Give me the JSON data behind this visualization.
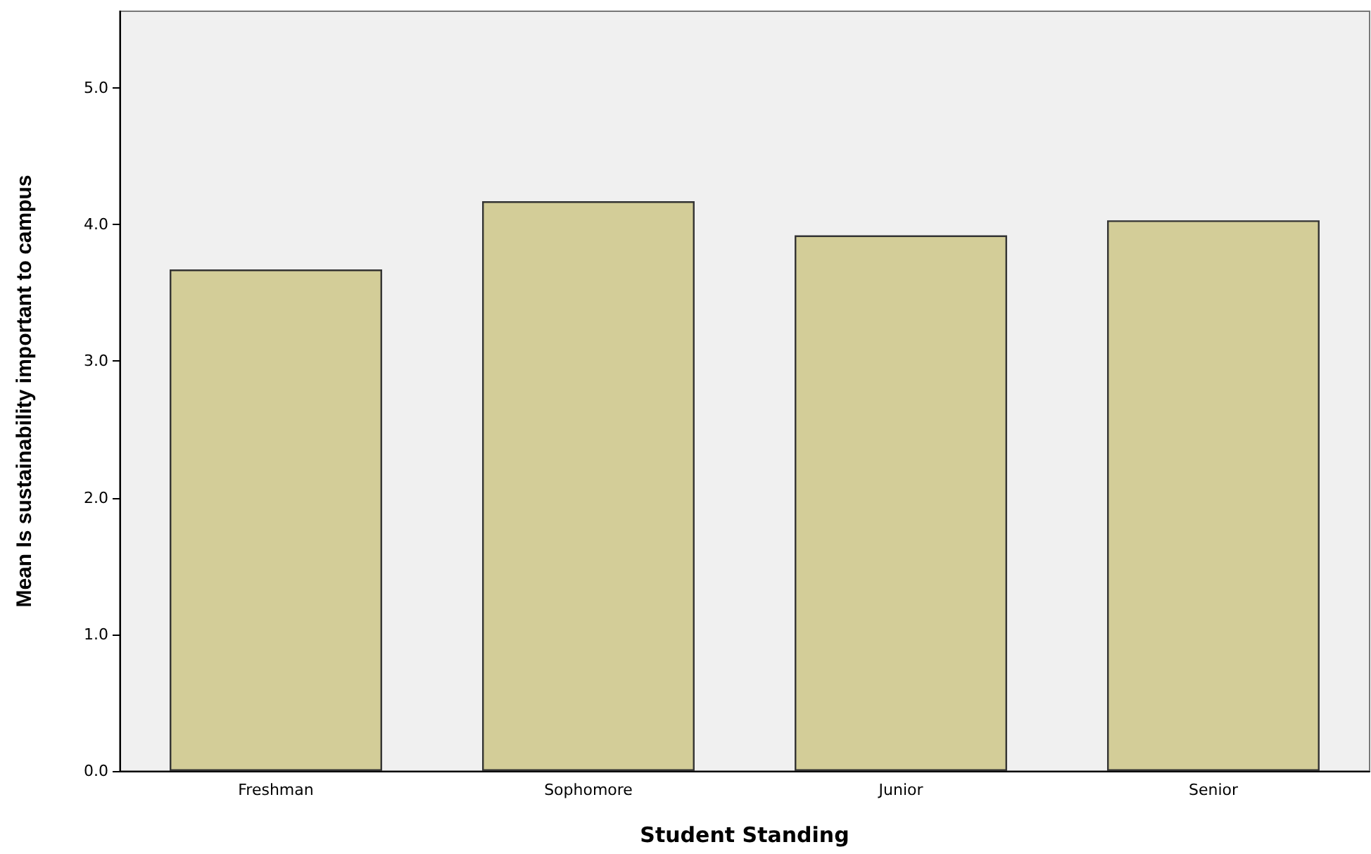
{
  "chart_data": {
    "type": "bar",
    "xlabel": "Student Standing",
    "ylabel": "Mean Is sustainability important to campus",
    "categories": [
      "Freshman",
      "Sophomore",
      "Junior",
      "Senior"
    ],
    "values": [
      3.67,
      4.17,
      3.92,
      4.03
    ],
    "color": "#d3cd98",
    "ylim": [
      0,
      5.56
    ],
    "yticks": [
      {
        "value": 0,
        "label": "0.0"
      },
      {
        "value": 1,
        "label": "1.0"
      },
      {
        "value": 2,
        "label": "2.0"
      },
      {
        "value": 3,
        "label": "3.0"
      },
      {
        "value": 4,
        "label": "4.0"
      },
      {
        "value": 5,
        "label": "5.0"
      }
    ],
    "grid": false
  }
}
